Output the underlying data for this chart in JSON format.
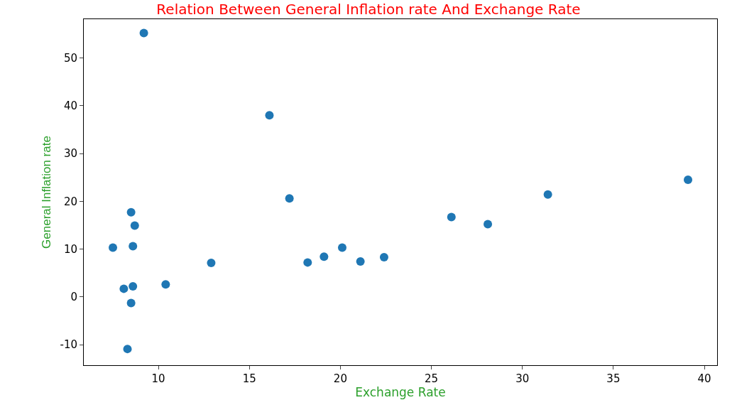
{
  "chart_data": {
    "type": "scatter",
    "title": "Relation Between General Inflation rate And Exchange Rate",
    "xlabel": "Exchange Rate",
    "ylabel": "General Inflation rate",
    "x": [
      9.2,
      16.1,
      39.1,
      31.4,
      17.2,
      8.5,
      26.1,
      28.1,
      8.7,
      7.5,
      8.6,
      20.1,
      19.1,
      22.4,
      12.9,
      18.2,
      21.1,
      10.4,
      8.1,
      8.6,
      8.5,
      8.3
    ],
    "series": [
      {
        "color": "#1f77b4",
        "values": [
          55.2,
          38.0,
          24.5,
          21.4,
          20.6,
          17.7,
          16.7,
          15.2,
          14.9,
          10.3,
          10.6,
          10.3,
          8.4,
          8.3,
          7.1,
          7.2,
          7.4,
          2.6,
          1.7,
          2.2,
          -1.3,
          -10.9
        ]
      }
    ],
    "xlim": [
      5.9,
      40.7
    ],
    "ylim": [
      -14.3,
      58.1
    ],
    "xticks": [
      10,
      15,
      20,
      25,
      30,
      35,
      40
    ],
    "yticks": [
      -10,
      0,
      10,
      20,
      30,
      40,
      50
    ],
    "marker": "circle"
  }
}
